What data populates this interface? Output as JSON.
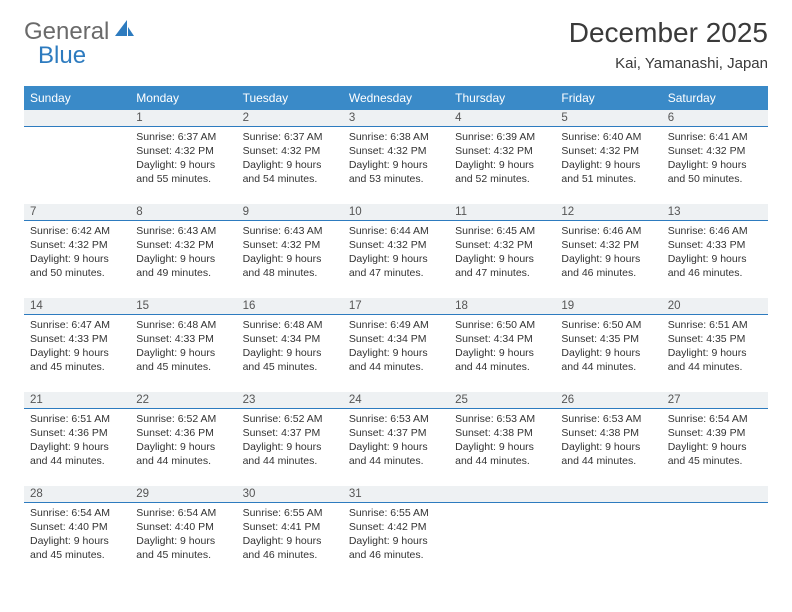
{
  "logo": {
    "text1": "General",
    "text2": "Blue"
  },
  "title": "December 2025",
  "location": "Kai, Yamanashi, Japan",
  "colors": {
    "header_bg": "#3a8ac8",
    "header_text": "#ffffff",
    "daynum_bg": "#eef1f3",
    "daynum_border": "#2d7bbf",
    "body_text": "#333333",
    "logo_gray": "#6a6a6a",
    "logo_blue": "#2d7bbf"
  },
  "weekdays": [
    "Sunday",
    "Monday",
    "Tuesday",
    "Wednesday",
    "Thursday",
    "Friday",
    "Saturday"
  ],
  "weeks": [
    {
      "nums": [
        "",
        "1",
        "2",
        "3",
        "4",
        "5",
        "6"
      ],
      "cells": [
        null,
        {
          "sr": "6:37 AM",
          "ss": "4:32 PM",
          "dl": "9 hours and 55 minutes."
        },
        {
          "sr": "6:37 AM",
          "ss": "4:32 PM",
          "dl": "9 hours and 54 minutes."
        },
        {
          "sr": "6:38 AM",
          "ss": "4:32 PM",
          "dl": "9 hours and 53 minutes."
        },
        {
          "sr": "6:39 AM",
          "ss": "4:32 PM",
          "dl": "9 hours and 52 minutes."
        },
        {
          "sr": "6:40 AM",
          "ss": "4:32 PM",
          "dl": "9 hours and 51 minutes."
        },
        {
          "sr": "6:41 AM",
          "ss": "4:32 PM",
          "dl": "9 hours and 50 minutes."
        }
      ]
    },
    {
      "nums": [
        "7",
        "8",
        "9",
        "10",
        "11",
        "12",
        "13"
      ],
      "cells": [
        {
          "sr": "6:42 AM",
          "ss": "4:32 PM",
          "dl": "9 hours and 50 minutes."
        },
        {
          "sr": "6:43 AM",
          "ss": "4:32 PM",
          "dl": "9 hours and 49 minutes."
        },
        {
          "sr": "6:43 AM",
          "ss": "4:32 PM",
          "dl": "9 hours and 48 minutes."
        },
        {
          "sr": "6:44 AM",
          "ss": "4:32 PM",
          "dl": "9 hours and 47 minutes."
        },
        {
          "sr": "6:45 AM",
          "ss": "4:32 PM",
          "dl": "9 hours and 47 minutes."
        },
        {
          "sr": "6:46 AM",
          "ss": "4:32 PM",
          "dl": "9 hours and 46 minutes."
        },
        {
          "sr": "6:46 AM",
          "ss": "4:33 PM",
          "dl": "9 hours and 46 minutes."
        }
      ]
    },
    {
      "nums": [
        "14",
        "15",
        "16",
        "17",
        "18",
        "19",
        "20"
      ],
      "cells": [
        {
          "sr": "6:47 AM",
          "ss": "4:33 PM",
          "dl": "9 hours and 45 minutes."
        },
        {
          "sr": "6:48 AM",
          "ss": "4:33 PM",
          "dl": "9 hours and 45 minutes."
        },
        {
          "sr": "6:48 AM",
          "ss": "4:34 PM",
          "dl": "9 hours and 45 minutes."
        },
        {
          "sr": "6:49 AM",
          "ss": "4:34 PM",
          "dl": "9 hours and 44 minutes."
        },
        {
          "sr": "6:50 AM",
          "ss": "4:34 PM",
          "dl": "9 hours and 44 minutes."
        },
        {
          "sr": "6:50 AM",
          "ss": "4:35 PM",
          "dl": "9 hours and 44 minutes."
        },
        {
          "sr": "6:51 AM",
          "ss": "4:35 PM",
          "dl": "9 hours and 44 minutes."
        }
      ]
    },
    {
      "nums": [
        "21",
        "22",
        "23",
        "24",
        "25",
        "26",
        "27"
      ],
      "cells": [
        {
          "sr": "6:51 AM",
          "ss": "4:36 PM",
          "dl": "9 hours and 44 minutes."
        },
        {
          "sr": "6:52 AM",
          "ss": "4:36 PM",
          "dl": "9 hours and 44 minutes."
        },
        {
          "sr": "6:52 AM",
          "ss": "4:37 PM",
          "dl": "9 hours and 44 minutes."
        },
        {
          "sr": "6:53 AM",
          "ss": "4:37 PM",
          "dl": "9 hours and 44 minutes."
        },
        {
          "sr": "6:53 AM",
          "ss": "4:38 PM",
          "dl": "9 hours and 44 minutes."
        },
        {
          "sr": "6:53 AM",
          "ss": "4:38 PM",
          "dl": "9 hours and 44 minutes."
        },
        {
          "sr": "6:54 AM",
          "ss": "4:39 PM",
          "dl": "9 hours and 45 minutes."
        }
      ]
    },
    {
      "nums": [
        "28",
        "29",
        "30",
        "31",
        "",
        "",
        ""
      ],
      "cells": [
        {
          "sr": "6:54 AM",
          "ss": "4:40 PM",
          "dl": "9 hours and 45 minutes."
        },
        {
          "sr": "6:54 AM",
          "ss": "4:40 PM",
          "dl": "9 hours and 45 minutes."
        },
        {
          "sr": "6:55 AM",
          "ss": "4:41 PM",
          "dl": "9 hours and 46 minutes."
        },
        {
          "sr": "6:55 AM",
          "ss": "4:42 PM",
          "dl": "9 hours and 46 minutes."
        },
        null,
        null,
        null
      ]
    }
  ],
  "labels": {
    "sunrise": "Sunrise:",
    "sunset": "Sunset:",
    "daylight": "Daylight:"
  }
}
